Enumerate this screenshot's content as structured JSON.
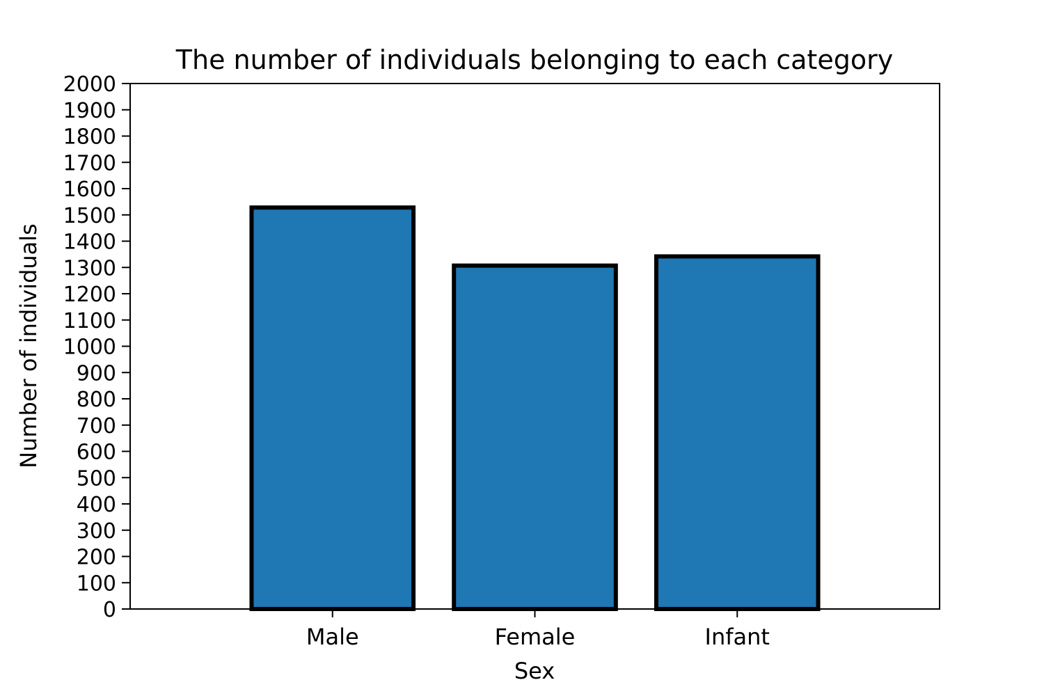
{
  "chart_data": {
    "type": "bar",
    "title": "The number of individuals belonging to each category",
    "xlabel": "Sex",
    "ylabel": "Number of individuals",
    "categories": [
      "Male",
      "Female",
      "Infant"
    ],
    "values": [
      1528,
      1307,
      1342
    ],
    "ylim": [
      0,
      2000
    ],
    "ytick_step": 100,
    "grid": false,
    "legend": "none",
    "colors": {
      "bar_fill": "#1f77b4",
      "bar_edge": "#000000",
      "axes": "#000000",
      "text": "#000000"
    }
  }
}
